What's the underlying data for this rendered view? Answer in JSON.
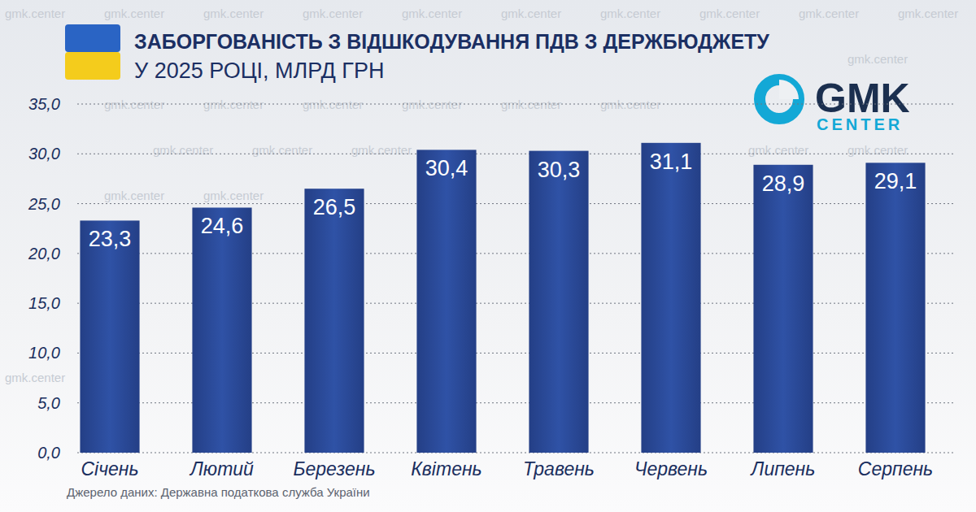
{
  "chart_data": {
    "type": "bar",
    "title": "ЗАБОРГОВАНІСТЬ З ВІДШКОДУВАННЯ ПДВ З ДЕРЖБЮДЖЕТУ",
    "subtitle": "У 2025 РОЦІ, МЛРД ГРН",
    "source": "Джерело даних: Державна податкова служба України",
    "logo_text": "GMK",
    "logo_subtext": "CENTER",
    "watermark": "gmk.center",
    "categories": [
      "Січень",
      "Лютий",
      "Березень",
      "Квітень",
      "Травень",
      "Червень",
      "Липень",
      "Серпень"
    ],
    "values": [
      23.3,
      24.6,
      26.5,
      30.4,
      30.3,
      31.1,
      28.9,
      29.1
    ],
    "value_labels": [
      "23,3",
      "24,6",
      "26,5",
      "30,4",
      "30,3",
      "31,1",
      "28,9",
      "29,1"
    ],
    "color": "#243f86",
    "ylim": [
      0,
      35
    ],
    "yticks": [
      {
        "value": 0,
        "label": "0,0"
      },
      {
        "value": 5,
        "label": "5,0"
      },
      {
        "value": 10,
        "label": "10,0"
      },
      {
        "value": 15,
        "label": "15,0"
      },
      {
        "value": 20,
        "label": "20,0"
      },
      {
        "value": 25,
        "label": "25,0"
      },
      {
        "value": 30,
        "label": "30,0"
      },
      {
        "value": 35,
        "label": "35,0"
      }
    ],
    "grid": true,
    "data_labels": true
  }
}
